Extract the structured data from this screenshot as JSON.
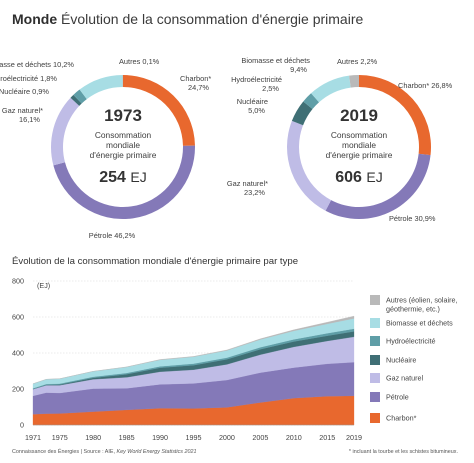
{
  "header": {
    "title_bold": "Monde",
    "title_rest": "Évolution de la consommation d'énergie primaire"
  },
  "colors": {
    "charbon": "#e8682e",
    "petrole": "#8479b8",
    "gaz": "#bfbce6",
    "nucleaire": "#3f6f75",
    "hydro": "#5f9ea7",
    "biomasse": "#a7dde4",
    "autres": "#b9b9b9"
  },
  "chart_data": [
    {
      "type": "pie",
      "title": "1973",
      "center_lines": [
        "Consommation",
        "mondiale",
        "d'énergie primaire"
      ],
      "total_value": "254",
      "total_unit": "EJ",
      "slices": [
        {
          "key": "charbon",
          "name": "Charbon*",
          "value_label": "24,7%",
          "value": 24.7
        },
        {
          "key": "petrole",
          "name": "Pétrole",
          "value_label": "46,2%",
          "value": 46.2
        },
        {
          "key": "gaz",
          "name": "Gaz naturel*",
          "value_label": "16,1%",
          "value": 16.1
        },
        {
          "key": "nucleaire",
          "name": "Nucléaire",
          "value_label": "0,9%",
          "value": 0.9
        },
        {
          "key": "hydro",
          "name": "Hydroélectricité",
          "value_label": "1,8%",
          "value": 1.8
        },
        {
          "key": "biomasse",
          "name": "Biomasse et déchets",
          "value_label": "10,2%",
          "value": 10.2
        },
        {
          "key": "autres",
          "name": "Autres",
          "value_label": "0,1%",
          "value": 0.1
        }
      ]
    },
    {
      "type": "pie",
      "title": "2019",
      "center_lines": [
        "Consommation",
        "mondiale",
        "d'énergie primaire"
      ],
      "total_value": "606",
      "total_unit": "EJ",
      "slices": [
        {
          "key": "charbon",
          "name": "Charbon*",
          "value_label": "26,8%",
          "value": 26.8
        },
        {
          "key": "petrole",
          "name": "Pétrole",
          "value_label": "30,9%",
          "value": 30.9
        },
        {
          "key": "gaz",
          "name": "Gaz naturel*",
          "value_label": "23,2%",
          "value": 23.2
        },
        {
          "key": "nucleaire",
          "name": "Nucléaire",
          "value_label": "5,0%",
          "value": 5.0
        },
        {
          "key": "hydro",
          "name": "Hydroélectricité",
          "value_label": "2,5%",
          "value": 2.5
        },
        {
          "key": "biomasse",
          "name": "Biomasse et déchets",
          "value_label": "9,4%",
          "value": 9.4
        },
        {
          "key": "autres",
          "name": "Autres",
          "value_label": "2,2%",
          "value": 2.2
        }
      ]
    },
    {
      "type": "area",
      "title": "Évolution de la consommation mondiale d'énergie primaire par type",
      "ylabel": "(EJ)",
      "ylim": [
        0,
        800
      ],
      "yticks": [
        0,
        200,
        400,
        600,
        800
      ],
      "xlim": [
        1971,
        2019
      ],
      "xtick_labels": [
        "1971",
        "1975",
        "1980",
        "1985",
        "1990",
        "1995",
        "2000",
        "2005",
        "2010",
        "2015",
        "2019"
      ],
      "x": [
        1971,
        1973,
        1975,
        1980,
        1985,
        1990,
        1995,
        2000,
        2005,
        2010,
        2015,
        2019
      ],
      "series": [
        {
          "key": "charbon",
          "name": "Charbon*",
          "values": [
            60,
            63,
            64,
            74,
            84,
            93,
            92,
            98,
            125,
            149,
            160,
            162
          ]
        },
        {
          "key": "petrole",
          "name": "Pétrole",
          "values": [
            102,
            117,
            114,
            128,
            120,
            133,
            139,
            152,
            166,
            170,
            180,
            187
          ]
        },
        {
          "key": "gaz",
          "name": "Gaz naturel*",
          "values": [
            37,
            41,
            43,
            52,
            61,
            70,
            76,
            87,
            100,
            115,
            127,
            141
          ]
        },
        {
          "key": "nucleaire",
          "name": "Nucléaire",
          "values": [
            1,
            2,
            4,
            8,
            17,
            22,
            25,
            28,
            30,
            30,
            29,
            30
          ]
        },
        {
          "key": "hydro",
          "name": "Hydroélectricité",
          "values": [
            4,
            5,
            5,
            6,
            7,
            8,
            9,
            9,
            11,
            12,
            14,
            15
          ]
        },
        {
          "key": "biomasse",
          "name": "Biomasse et déchets",
          "values": [
            25,
            26,
            27,
            30,
            33,
            36,
            38,
            40,
            43,
            47,
            52,
            57
          ]
        },
        {
          "key": "autres",
          "name": "Autres (éolien, solaire, géothermie, etc.)",
          "values": [
            0.2,
            0.3,
            0.4,
            0.6,
            1,
            2,
            2,
            3,
            4,
            6,
            9,
            13
          ]
        }
      ]
    }
  ],
  "legend": {
    "items": [
      {
        "key": "autres",
        "lines": [
          "Autres (éolien, solaire,",
          "géothermie, etc.)"
        ]
      },
      {
        "key": "biomasse",
        "lines": [
          "Biomasse et déchets"
        ]
      },
      {
        "key": "hydro",
        "lines": [
          "Hydroélectricité"
        ]
      },
      {
        "key": "nucleaire",
        "lines": [
          "Nucléaire"
        ]
      },
      {
        "key": "gaz",
        "lines": [
          "Gaz naturel"
        ]
      },
      {
        "key": "petrole",
        "lines": [
          "Pétrole"
        ]
      },
      {
        "key": "charbon",
        "lines": [
          "Charbon*"
        ]
      }
    ]
  },
  "footer": {
    "source_prefix": "Connaissance des Énergies | Source : AIE, ",
    "source_italic": "Key World Energy Statistics 2021",
    "note": "* incluant la tourbe et les schistes bitumineux."
  }
}
